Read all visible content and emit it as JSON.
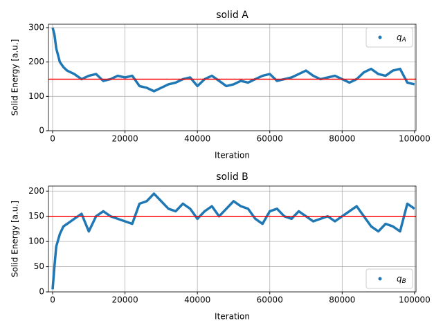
{
  "chart_data": [
    {
      "type": "line",
      "title": "solid A",
      "xlabel": "Iteration",
      "ylabel": "Solid Energy [a.u.]",
      "x": [
        0,
        500,
        1000,
        2000,
        3000,
        4000,
        6000,
        8000,
        10000,
        12000,
        14000,
        16000,
        18000,
        20000,
        22000,
        24000,
        26000,
        28000,
        30000,
        32000,
        34000,
        36000,
        38000,
        40000,
        42000,
        44000,
        46000,
        48000,
        50000,
        52000,
        54000,
        56000,
        58000,
        60000,
        62000,
        64000,
        66000,
        68000,
        70000,
        72000,
        74000,
        76000,
        78000,
        80000,
        82000,
        84000,
        86000,
        88000,
        90000,
        92000,
        94000,
        96000,
        98000,
        100000
      ],
      "series": [
        {
          "name": "qA",
          "color": "#1f77b4",
          "values": [
            300,
            280,
            240,
            200,
            185,
            175,
            165,
            150,
            160,
            165,
            145,
            150,
            160,
            155,
            160,
            130,
            125,
            115,
            125,
            135,
            140,
            150,
            155,
            130,
            150,
            160,
            145,
            130,
            135,
            145,
            140,
            150,
            160,
            165,
            145,
            150,
            155,
            165,
            175,
            160,
            150,
            155,
            160,
            150,
            140,
            150,
            170,
            180,
            165,
            160,
            175,
            180,
            140,
            135
          ]
        }
      ],
      "hline": {
        "value": 150,
        "color": "#ff0000"
      },
      "xlim": [
        -1150,
        100400
      ],
      "ylim": [
        0,
        310
      ],
      "xticks": [
        0,
        20000,
        40000,
        60000,
        80000,
        100000
      ],
      "yticks": [
        0,
        100,
        200,
        300
      ],
      "grid": true,
      "legend": "upper right"
    },
    {
      "type": "line",
      "title": "solid B",
      "xlabel": "Iteration",
      "ylabel": "Solid Energy [a.u.]",
      "x": [
        0,
        500,
        1000,
        2000,
        3000,
        4000,
        6000,
        8000,
        10000,
        12000,
        14000,
        16000,
        18000,
        20000,
        22000,
        24000,
        26000,
        28000,
        30000,
        32000,
        34000,
        36000,
        38000,
        40000,
        42000,
        44000,
        46000,
        48000,
        50000,
        52000,
        54000,
        56000,
        58000,
        60000,
        62000,
        64000,
        66000,
        68000,
        70000,
        72000,
        74000,
        76000,
        78000,
        80000,
        82000,
        84000,
        86000,
        88000,
        90000,
        92000,
        94000,
        96000,
        98000,
        100000
      ],
      "series": [
        {
          "name": "qB",
          "color": "#1f77b4",
          "values": [
            5,
            50,
            90,
            115,
            130,
            135,
            145,
            155,
            120,
            150,
            160,
            150,
            145,
            140,
            135,
            175,
            180,
            195,
            180,
            165,
            160,
            175,
            165,
            145,
            160,
            170,
            150,
            165,
            180,
            170,
            165,
            145,
            135,
            160,
            165,
            150,
            145,
            160,
            150,
            140,
            145,
            150,
            140,
            150,
            160,
            170,
            150,
            130,
            120,
            135,
            130,
            120,
            175,
            165
          ]
        }
      ],
      "hline": {
        "value": 150,
        "color": "#ff0000"
      },
      "xlim": [
        -1150,
        100400
      ],
      "ylim": [
        0,
        210
      ],
      "xticks": [
        0,
        20000,
        40000,
        60000,
        80000,
        100000
      ],
      "yticks": [
        0,
        50,
        100,
        150,
        200
      ],
      "grid": true,
      "legend": "lower right"
    }
  ]
}
